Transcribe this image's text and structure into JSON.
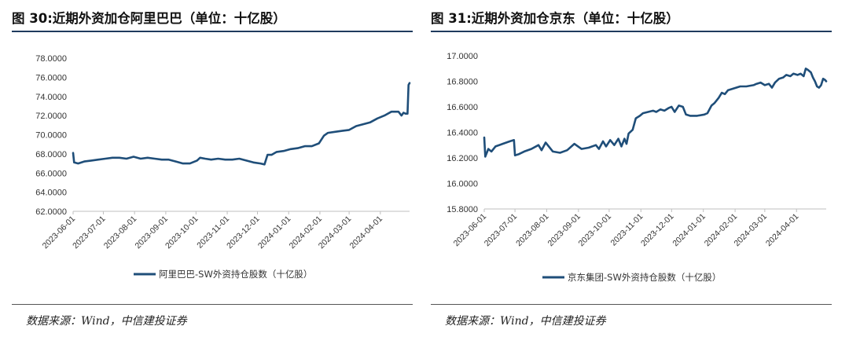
{
  "charts": [
    {
      "title": "图 30:近期外资加仓阿里巴巴（单位：十亿股）",
      "source": "数据来源：Wind，中信建投证券",
      "chart_data": {
        "type": "line",
        "title": "近期外资加仓阿里巴巴（单位：十亿股）",
        "xlabel": "",
        "ylabel": "",
        "ylim": [
          62,
          78
        ],
        "y_ticks": [
          "62.0000",
          "64.0000",
          "66.0000",
          "68.0000",
          "70.0000",
          "72.0000",
          "74.0000",
          "76.0000",
          "78.0000"
        ],
        "x_ticks": [
          "2023-06-01",
          "2023-07-01",
          "2023-08-01",
          "2023-09-01",
          "2023-10-01",
          "2023-11-01",
          "2023-12-01",
          "2024-01-01",
          "2024-02-01",
          "2024-03-01",
          "2024-04-01"
        ],
        "x_range": [
          "2023-06-01",
          "2024-04-30"
        ],
        "grid": false,
        "legend_position": "bottom",
        "series": [
          {
            "name": "阿里巴巴-SW外资持仓股数（十亿股）",
            "color": "#1f4e79",
            "points": [
              [
                "2023-06-01",
                68.1
              ],
              [
                "2023-06-02",
                67.1
              ],
              [
                "2023-06-06",
                67.0
              ],
              [
                "2023-06-12",
                67.2
              ],
              [
                "2023-06-19",
                67.3
              ],
              [
                "2023-06-26",
                67.4
              ],
              [
                "2023-07-03",
                67.5
              ],
              [
                "2023-07-10",
                67.6
              ],
              [
                "2023-07-17",
                67.6
              ],
              [
                "2023-07-24",
                67.5
              ],
              [
                "2023-07-31",
                67.7
              ],
              [
                "2023-08-07",
                67.5
              ],
              [
                "2023-08-14",
                67.6
              ],
              [
                "2023-08-21",
                67.5
              ],
              [
                "2023-08-28",
                67.4
              ],
              [
                "2023-09-04",
                67.4
              ],
              [
                "2023-09-11",
                67.2
              ],
              [
                "2023-09-18",
                67.0
              ],
              [
                "2023-09-25",
                67.0
              ],
              [
                "2023-10-02",
                67.3
              ],
              [
                "2023-10-05",
                67.6
              ],
              [
                "2023-10-10",
                67.5
              ],
              [
                "2023-10-16",
                67.4
              ],
              [
                "2023-10-23",
                67.5
              ],
              [
                "2023-10-30",
                67.4
              ],
              [
                "2023-11-06",
                67.4
              ],
              [
                "2023-11-13",
                67.5
              ],
              [
                "2023-11-20",
                67.3
              ],
              [
                "2023-11-27",
                67.1
              ],
              [
                "2023-12-04",
                67.0
              ],
              [
                "2023-12-08",
                66.9
              ],
              [
                "2023-12-11",
                67.9
              ],
              [
                "2023-12-15",
                67.9
              ],
              [
                "2023-12-20",
                68.2
              ],
              [
                "2023-12-27",
                68.3
              ],
              [
                "2024-01-03",
                68.5
              ],
              [
                "2024-01-10",
                68.6
              ],
              [
                "2024-01-17",
                68.8
              ],
              [
                "2024-01-24",
                68.8
              ],
              [
                "2024-01-31",
                69.1
              ],
              [
                "2024-02-05",
                69.9
              ],
              [
                "2024-02-09",
                70.2
              ],
              [
                "2024-02-16",
                70.3
              ],
              [
                "2024-02-23",
                70.4
              ],
              [
                "2024-03-01",
                70.5
              ],
              [
                "2024-03-08",
                70.9
              ],
              [
                "2024-03-15",
                71.1
              ],
              [
                "2024-03-22",
                71.3
              ],
              [
                "2024-03-29",
                71.7
              ],
              [
                "2024-04-05",
                72.0
              ],
              [
                "2024-04-12",
                72.4
              ],
              [
                "2024-04-19",
                72.4
              ],
              [
                "2024-04-22",
                72.0
              ],
              [
                "2024-04-24",
                72.3
              ],
              [
                "2024-04-26",
                72.2
              ],
              [
                "2024-04-28",
                72.2
              ],
              [
                "2024-04-29",
                75.2
              ],
              [
                "2024-04-30",
                75.4
              ]
            ]
          }
        ]
      }
    },
    {
      "title": "图 31:近期外资加仓京东（单位：十亿股）",
      "source": "数据来源：Wind，中信建投证券",
      "chart_data": {
        "type": "line",
        "title": "近期外资加仓京东（单位：十亿股）",
        "xlabel": "",
        "ylabel": "",
        "ylim": [
          15.8,
          17.0
        ],
        "y_ticks": [
          "15.8000",
          "16.0000",
          "16.2000",
          "16.4000",
          "16.6000",
          "16.8000",
          "17.0000"
        ],
        "x_ticks": [
          "2023-06-01",
          "2023-07-01",
          "2023-08-01",
          "2023-09-01",
          "2023-10-01",
          "2023-11-01",
          "2023-12-01",
          "2024-01-01",
          "2024-02-01",
          "2024-03-01",
          "2024-04-01"
        ],
        "x_range": [
          "2023-06-01",
          "2024-04-30"
        ],
        "grid": false,
        "legend_position": "bottom",
        "series": [
          {
            "name": "京东集团-SW外资持仓股数（十亿股）",
            "color": "#1f4e79",
            "points": [
              [
                "2023-06-01",
                16.36
              ],
              [
                "2023-06-02",
                16.21
              ],
              [
                "2023-06-05",
                16.27
              ],
              [
                "2023-06-08",
                16.25
              ],
              [
                "2023-06-12",
                16.29
              ],
              [
                "2023-06-19",
                16.31
              ],
              [
                "2023-06-26",
                16.33
              ],
              [
                "2023-06-30",
                16.34
              ],
              [
                "2023-07-01",
                16.22
              ],
              [
                "2023-07-05",
                16.23
              ],
              [
                "2023-07-10",
                16.25
              ],
              [
                "2023-07-17",
                16.27
              ],
              [
                "2023-07-24",
                16.3
              ],
              [
                "2023-07-27",
                16.26
              ],
              [
                "2023-07-31",
                16.32
              ],
              [
                "2023-08-03",
                16.29
              ],
              [
                "2023-08-07",
                16.25
              ],
              [
                "2023-08-14",
                16.24
              ],
              [
                "2023-08-21",
                16.26
              ],
              [
                "2023-08-28",
                16.31
              ],
              [
                "2023-09-04",
                16.27
              ],
              [
                "2023-09-11",
                16.28
              ],
              [
                "2023-09-18",
                16.3
              ],
              [
                "2023-09-21",
                16.27
              ],
              [
                "2023-09-25",
                16.33
              ],
              [
                "2023-09-28",
                16.29
              ],
              [
                "2023-10-02",
                16.34
              ],
              [
                "2023-10-06",
                16.3
              ],
              [
                "2023-10-10",
                16.35
              ],
              [
                "2023-10-13",
                16.29
              ],
              [
                "2023-10-16",
                16.35
              ],
              [
                "2023-10-18",
                16.31
              ],
              [
                "2023-10-20",
                16.39
              ],
              [
                "2023-10-24",
                16.42
              ],
              [
                "2023-10-27",
                16.51
              ],
              [
                "2023-10-31",
                16.53
              ],
              [
                "2023-11-03",
                16.55
              ],
              [
                "2023-11-08",
                16.56
              ],
              [
                "2023-11-13",
                16.57
              ],
              [
                "2023-11-16",
                16.56
              ],
              [
                "2023-11-20",
                16.58
              ],
              [
                "2023-11-24",
                16.57
              ],
              [
                "2023-11-28",
                16.59
              ],
              [
                "2023-12-01",
                16.6
              ],
              [
                "2023-12-04",
                16.56
              ],
              [
                "2023-12-08",
                16.61
              ],
              [
                "2023-12-12",
                16.6
              ],
              [
                "2023-12-15",
                16.54
              ],
              [
                "2023-12-19",
                16.53
              ],
              [
                "2023-12-26",
                16.53
              ],
              [
                "2024-01-02",
                16.54
              ],
              [
                "2024-01-05",
                16.55
              ],
              [
                "2024-01-09",
                16.61
              ],
              [
                "2024-01-12",
                16.63
              ],
              [
                "2024-01-16",
                16.67
              ],
              [
                "2024-01-19",
                16.71
              ],
              [
                "2024-01-22",
                16.7
              ],
              [
                "2024-01-25",
                16.73
              ],
              [
                "2024-01-29",
                16.74
              ],
              [
                "2024-02-02",
                16.75
              ],
              [
                "2024-02-06",
                16.76
              ],
              [
                "2024-02-12",
                16.76
              ],
              [
                "2024-02-19",
                16.77
              ],
              [
                "2024-02-22",
                16.78
              ],
              [
                "2024-02-26",
                16.79
              ],
              [
                "2024-03-01",
                16.77
              ],
              [
                "2024-03-05",
                16.78
              ],
              [
                "2024-03-08",
                16.75
              ],
              [
                "2024-03-11",
                16.79
              ],
              [
                "2024-03-15",
                16.82
              ],
              [
                "2024-03-19",
                16.83
              ],
              [
                "2024-03-22",
                16.85
              ],
              [
                "2024-03-26",
                16.84
              ],
              [
                "2024-03-29",
                16.86
              ],
              [
                "2024-04-02",
                16.85
              ],
              [
                "2024-04-05",
                16.86
              ],
              [
                "2024-04-08",
                16.84
              ],
              [
                "2024-04-10",
                16.9
              ],
              [
                "2024-04-12",
                16.89
              ],
              [
                "2024-04-15",
                16.87
              ],
              [
                "2024-04-17",
                16.83
              ],
              [
                "2024-04-19",
                16.8
              ],
              [
                "2024-04-21",
                16.76
              ],
              [
                "2024-04-23",
                16.75
              ],
              [
                "2024-04-25",
                16.77
              ],
              [
                "2024-04-27",
                16.82
              ],
              [
                "2024-04-29",
                16.81
              ],
              [
                "2024-04-30",
                16.8
              ]
            ]
          }
        ]
      }
    }
  ]
}
